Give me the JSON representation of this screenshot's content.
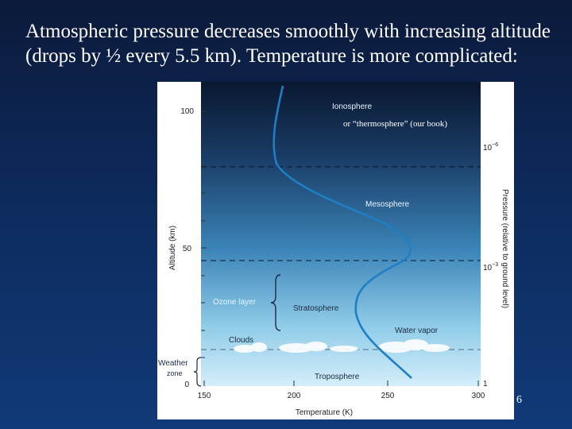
{
  "slide": {
    "text": "Atmospheric pressure decreases smoothly with increasing altitude (drops by ½ every 5.5 km).  Temperature is more complicated:",
    "slide_number": "6"
  },
  "diagram": {
    "y_axis_label": "Altitude (km)",
    "x_axis_label": "Temperature (K)",
    "right_axis_label": "Pressure (relative to ground level)",
    "y_ticks": [
      "100",
      "50",
      "0"
    ],
    "x_ticks": [
      "150",
      "200",
      "250",
      "300"
    ],
    "pressure_ticks": {
      "p1_base": "10",
      "p1_exp": "−6",
      "p2_base": "10",
      "p2_exp": "−3",
      "p3": "1"
    },
    "layers": {
      "ionosphere": "Ionosphere",
      "thermosphere_note": "or “thermosphere” (our book)",
      "mesosphere": "Mesosphere",
      "stratosphere": "Stratosphere",
      "troposphere": "Troposphere"
    },
    "annotations": {
      "ozone": "Ozone layer",
      "water_vapor": "Water vapor",
      "clouds": "Clouds",
      "weather_1": "Weather",
      "weather_2": "zone"
    },
    "colors": {
      "sky_top": "#0a1730",
      "sky_bottom": "#c7e9f7",
      "curve": "#1e7fc4",
      "label_light": "#e8f4ff",
      "label_dark": "#1b2a44"
    }
  }
}
